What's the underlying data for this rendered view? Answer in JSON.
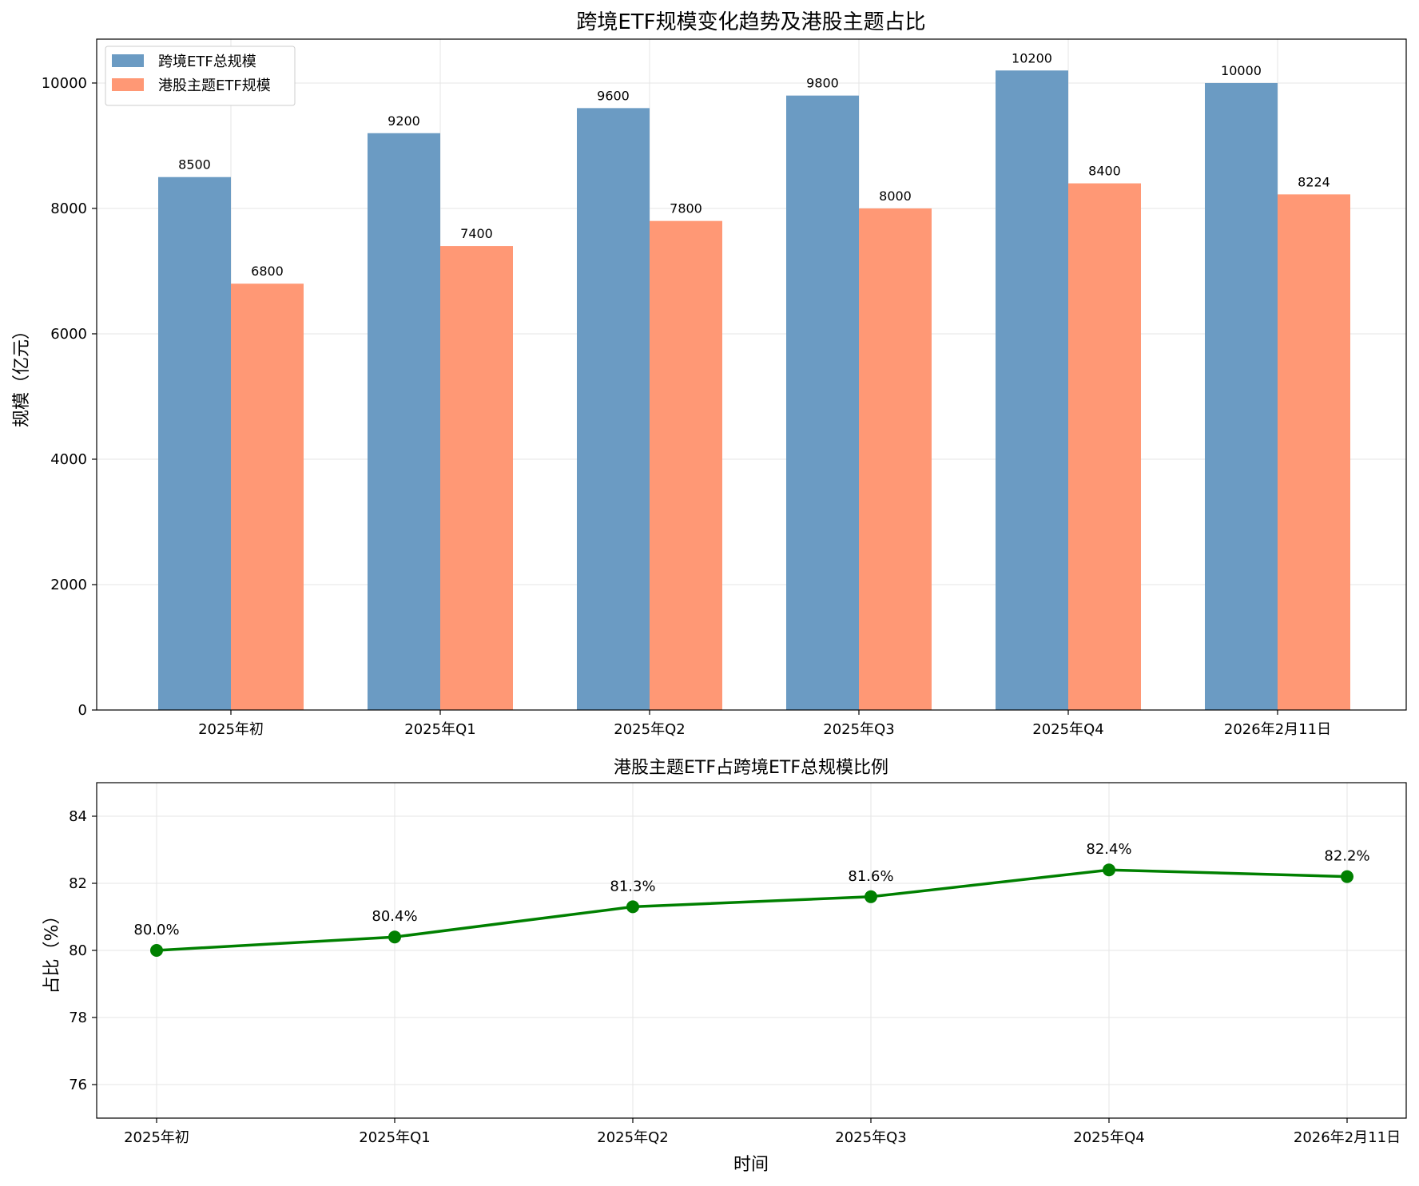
{
  "chart_data": [
    {
      "type": "bar",
      "title": "跨境ETF规模变化趋势及港股主题占比",
      "xlabel": "",
      "ylabel": "规模（亿元）",
      "categories": [
        "2025年初",
        "2025年Q1",
        "2025年Q2",
        "2025年Q3",
        "2025年Q4",
        "2026年2月11日"
      ],
      "series": [
        {
          "name": "跨境ETF总规模",
          "color": "#6b9bc3",
          "values": [
            8500,
            9200,
            9600,
            9800,
            10200,
            10000
          ]
        },
        {
          "name": "港股主题ETF规模",
          "color": "#ff9875",
          "values": [
            6800,
            7400,
            7800,
            8000,
            8400,
            8224
          ]
        }
      ],
      "ylim": [
        0,
        10700
      ],
      "yticks": [
        0,
        2000,
        4000,
        6000,
        8000,
        10000
      ],
      "grid": true,
      "legend": "top-left"
    },
    {
      "type": "line",
      "title": "港股主题ETF占跨境ETF总规模比例",
      "xlabel": "时间",
      "ylabel": "占比（%）",
      "categories": [
        "2025年初",
        "2025年Q1",
        "2025年Q2",
        "2025年Q3",
        "2025年Q4",
        "2026年2月11日"
      ],
      "series": [
        {
          "name": "占比",
          "color": "#008000",
          "values": [
            80.0,
            80.4,
            81.3,
            81.6,
            82.4,
            82.2
          ]
        }
      ],
      "data_labels": [
        "80.0%",
        "80.4%",
        "81.3%",
        "81.6%",
        "82.4%",
        "82.2%"
      ],
      "ylim": [
        75,
        85
      ],
      "yticks": [
        76,
        78,
        80,
        82,
        84
      ],
      "grid": true
    }
  ]
}
